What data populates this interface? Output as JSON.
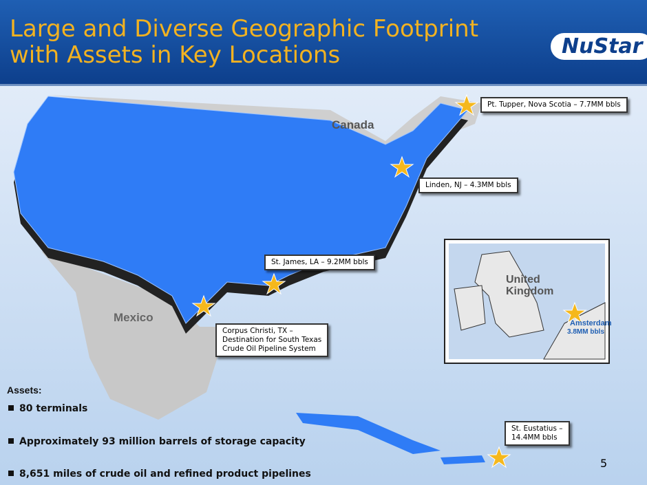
{
  "header": {
    "title": [
      "Large and Diverse Geographic Footprint",
      "with Assets in Key Locations"
    ],
    "logo": "NuStar"
  },
  "map": {
    "labels": {
      "canada": "Canada",
      "mexico": "Mexico"
    },
    "inset": {
      "country": [
        "United",
        "Kingdom"
      ],
      "city": "Amsterdam",
      "capacity": "3.8MM bbls"
    },
    "callouts": {
      "tupper": [
        "Pt. Tupper, Nova Scotia – 7.7MM bbls"
      ],
      "linden": [
        "Linden, NJ – 4.3MM bbls"
      ],
      "james": [
        "St. James, LA – 9.2MM bbls"
      ],
      "corpus": [
        "Corpus Christi, TX  –",
        "Destination for South Texas",
        "Crude Oil Pipeline System"
      ],
      "eustatius": [
        "St. Eustatius –",
        "14.4MM bbls"
      ]
    }
  },
  "assets": {
    "heading": "Assets:",
    "bullets": [
      "80 terminals",
      "Approximately 93 million barrels of storage capacity",
      "8,651 miles of crude oil and refined product pipelines"
    ]
  },
  "page_number": "5"
}
